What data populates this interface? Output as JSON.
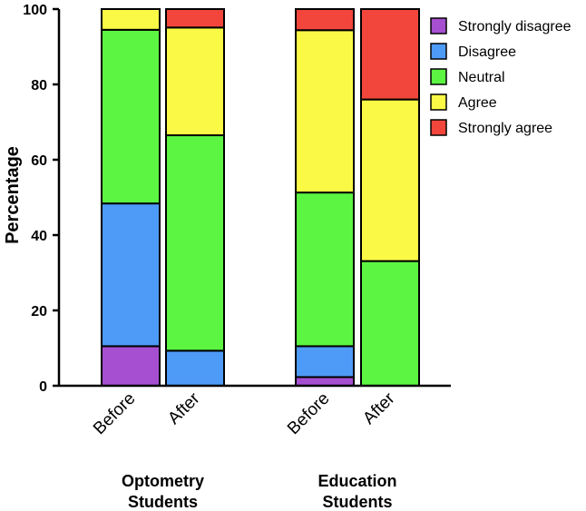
{
  "chart_data": {
    "type": "bar",
    "stacked": true,
    "ylabel": "Percentage",
    "ylim": [
      0,
      100
    ],
    "yticks": [
      0,
      20,
      40,
      60,
      80,
      100
    ],
    "grid": false,
    "legend_position": "top-right",
    "groups": [
      {
        "label_line1": "Optometry",
        "label_line2": "Students",
        "bars": [
          0,
          1
        ]
      },
      {
        "label_line1": "Education",
        "label_line2": "Students",
        "bars": [
          2,
          3
        ]
      }
    ],
    "categories": [
      "Before",
      "After",
      "Before",
      "After"
    ],
    "series": [
      {
        "name": "Strongly disagree",
        "color": "#a64fd1",
        "values": [
          10.5,
          0,
          2.3,
          0
        ]
      },
      {
        "name": "Disagree",
        "color": "#4e9af7",
        "values": [
          37.9,
          9.3,
          8.2,
          0
        ]
      },
      {
        "name": "Neutral",
        "color": "#5cf542",
        "values": [
          46.1,
          57.2,
          40.8,
          33.1
        ]
      },
      {
        "name": "Agree",
        "color": "#fafa46",
        "values": [
          5.5,
          28.6,
          43.1,
          42.9
        ]
      },
      {
        "name": "Strongly agree",
        "color": "#f2463c",
        "values": [
          0,
          4.9,
          5.6,
          24.0
        ]
      }
    ]
  }
}
